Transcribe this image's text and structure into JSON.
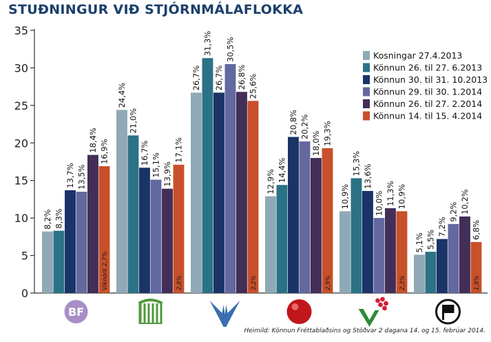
{
  "chart_data": {
    "type": "bar",
    "title": "STUÐNINGUR VIÐ STJÓRNMÁLAFLOKKA",
    "xlabel": "",
    "ylabel": "",
    "ylim": [
      0,
      35
    ],
    "yticks": [
      "0",
      "5",
      "10",
      "15",
      "20",
      "25",
      "30",
      "35"
    ],
    "grid": false,
    "legend_position": "top-right",
    "categories": [
      "BF",
      "Framsóknarflokkur",
      "Sjálfstæðisflokkur",
      "Samfylking",
      "Vinstri græn",
      "Píratar"
    ],
    "logo_icons": [
      "bf-logo-icon",
      "framsokn-logo-icon",
      "falcon-logo-icon",
      "red-ball-logo-icon",
      "vg-logo-icon",
      "pirate-flag-logo-icon"
    ],
    "logo_text": [
      "BF",
      "",
      "",
      "",
      "",
      ""
    ],
    "series": [
      {
        "name": "Kosningar 27.4.2013",
        "color": "#90a9b6",
        "values": [
          8.2,
          24.4,
          26.7,
          12.9,
          10.9,
          5.1
        ],
        "labels": [
          "8,2%",
          "24,4%",
          "26,7%",
          "12,9%",
          "10,9%",
          "5,1%"
        ]
      },
      {
        "name": "Könnun 26. til 27. 6.2013",
        "color": "#2b7287",
        "values": [
          8.3,
          21.0,
          31.3,
          14.4,
          15.3,
          5.5
        ],
        "labels": [
          "8,3%",
          "21,0%",
          "31,3%",
          "14,4%",
          "15,3%",
          "5,5%"
        ]
      },
      {
        "name": "Könnun 30. til 31. 10.2013",
        "color": "#1a3468",
        "values": [
          13.7,
          16.7,
          26.7,
          20.8,
          13.6,
          7.2
        ],
        "labels": [
          "13,7%",
          "16,7%",
          "26,7%",
          "20,8%",
          "13,6%",
          "7,2%"
        ]
      },
      {
        "name": "Könnun 29. til 30. 1.2014",
        "color": "#63689f",
        "values": [
          13.5,
          15.1,
          30.5,
          20.2,
          10.0,
          9.2
        ],
        "labels": [
          "13,5%",
          "15,1%",
          "30,5%",
          "20,2%",
          "10,0%",
          "9,2%"
        ]
      },
      {
        "name": "Könnun 26. til 27. 2.2014",
        "color": "#432e58",
        "values": [
          18.4,
          13.9,
          26.8,
          18.0,
          11.3,
          10.2
        ],
        "labels": [
          "18,4%",
          "13,9%",
          "26,8%",
          "18,0%",
          "11,3%",
          "10,2%"
        ]
      },
      {
        "name": "Könnun 14. til 15. 4.2014",
        "color": "#c8502a",
        "values": [
          16.9,
          17.1,
          25.6,
          19.3,
          10.9,
          6.8
        ],
        "labels": [
          "16,9%",
          "17,1%",
          "25,6%",
          "19,3%",
          "10,9%",
          "6,8%"
        ]
      }
    ],
    "annotations": [
      "Viknörk 2,7%",
      "2,8%",
      "3,2%",
      "2,9%",
      "2,3%",
      "1,8%"
    ]
  },
  "source": "Heimild: Könnun Fréttablaðsins og Stöðvar 2 dagana 14. og 15. febrúar 2014."
}
